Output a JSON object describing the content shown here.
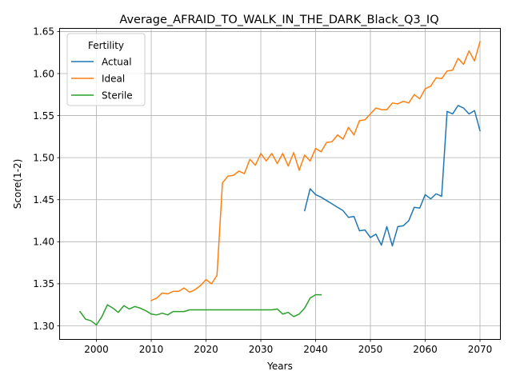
{
  "chart_data": {
    "type": "line",
    "title": "Average_AFRAID_TO_WALK_IN_THE_DARK_Black_Q3_IQ",
    "xlabel": "Years",
    "ylabel": "Score(1-2)",
    "xlim": [
      1993.35,
      2073.65
    ],
    "ylim": [
      1.2843,
      1.6542
    ],
    "xticks": [
      2000,
      2010,
      2020,
      2030,
      2040,
      2050,
      2060,
      2070
    ],
    "yticks": [
      1.3,
      1.35,
      1.4,
      1.45,
      1.5,
      1.55,
      1.6,
      1.65
    ],
    "ytick_labels": [
      "1.30",
      "1.35",
      "1.40",
      "1.45",
      "1.50",
      "1.55",
      "1.60",
      "1.65"
    ],
    "grid": true,
    "legend": {
      "title": "Fertility",
      "placement": "top-left"
    },
    "series": [
      {
        "name": "Actual",
        "color": "#1f77b4",
        "x": [
          2038,
          2039,
          2040,
          2041,
          2042,
          2043,
          2044,
          2045,
          2046,
          2047,
          2048,
          2049,
          2050,
          2051,
          2052,
          2053,
          2054,
          2055,
          2056,
          2057,
          2058,
          2059,
          2060,
          2061,
          2062,
          2063,
          2064,
          2065,
          2066,
          2067,
          2068,
          2069,
          2070
        ],
        "y": [
          1.437,
          1.463,
          1.456,
          1.453,
          1.449,
          1.445,
          1.441,
          1.437,
          1.429,
          1.43,
          1.413,
          1.414,
          1.405,
          1.409,
          1.396,
          1.418,
          1.395,
          1.418,
          1.419,
          1.425,
          1.441,
          1.44,
          1.456,
          1.451,
          1.457,
          1.454,
          1.555,
          1.552,
          1.562,
          1.559,
          1.552,
          1.556,
          1.532
        ]
      },
      {
        "name": "Ideal",
        "color": "#ff7f0e",
        "x": [
          2010,
          2011,
          2012,
          2013,
          2014,
          2015,
          2016,
          2017,
          2018,
          2019,
          2020,
          2021,
          2022,
          2023,
          2024,
          2025,
          2026,
          2027,
          2028,
          2029,
          2030,
          2031,
          2032,
          2033,
          2034,
          2035,
          2036,
          2037,
          2038,
          2039,
          2040,
          2041,
          2042,
          2043,
          2044,
          2045,
          2046,
          2047,
          2048,
          2049,
          2050,
          2051,
          2052,
          2053,
          2054,
          2055,
          2056,
          2057,
          2058,
          2059,
          2060,
          2061,
          2062,
          2063,
          2064,
          2065,
          2066,
          2067,
          2068,
          2069,
          2070
        ],
        "y": [
          1.33,
          1.333,
          1.339,
          1.338,
          1.341,
          1.341,
          1.345,
          1.34,
          1.343,
          1.348,
          1.355,
          1.35,
          1.36,
          1.47,
          1.478,
          1.479,
          1.484,
          1.481,
          1.498,
          1.491,
          1.505,
          1.496,
          1.505,
          1.493,
          1.505,
          1.49,
          1.506,
          1.485,
          1.503,
          1.496,
          1.511,
          1.507,
          1.518,
          1.519,
          1.527,
          1.522,
          1.536,
          1.527,
          1.544,
          1.545,
          1.552,
          1.559,
          1.557,
          1.557,
          1.565,
          1.564,
          1.567,
          1.565,
          1.575,
          1.57,
          1.582,
          1.585,
          1.595,
          1.594,
          1.603,
          1.604,
          1.618,
          1.611,
          1.627,
          1.615,
          1.638
        ]
      },
      {
        "name": "Sterile",
        "color": "#2ca02c",
        "x": [
          1997,
          1998,
          1999,
          2000,
          2001,
          2002,
          2003,
          2004,
          2005,
          2006,
          2007,
          2008,
          2009,
          2010,
          2011,
          2012,
          2013,
          2014,
          2015,
          2016,
          2017,
          2018,
          2019,
          2020,
          2021,
          2022,
          2023,
          2024,
          2025,
          2026,
          2027,
          2028,
          2029,
          2030,
          2031,
          2032,
          2033,
          2034,
          2035,
          2036,
          2037,
          2038,
          2039,
          2040,
          2041
        ],
        "y": [
          1.317,
          1.308,
          1.306,
          1.301,
          1.311,
          1.325,
          1.321,
          1.316,
          1.324,
          1.32,
          1.323,
          1.321,
          1.318,
          1.314,
          1.313,
          1.315,
          1.313,
          1.317,
          1.317,
          1.317,
          1.319,
          1.319,
          1.319,
          1.319,
          1.319,
          1.319,
          1.319,
          1.319,
          1.319,
          1.319,
          1.319,
          1.319,
          1.319,
          1.319,
          1.319,
          1.319,
          1.32,
          1.314,
          1.316,
          1.311,
          1.314,
          1.321,
          1.333,
          1.337,
          1.337
        ]
      }
    ]
  }
}
